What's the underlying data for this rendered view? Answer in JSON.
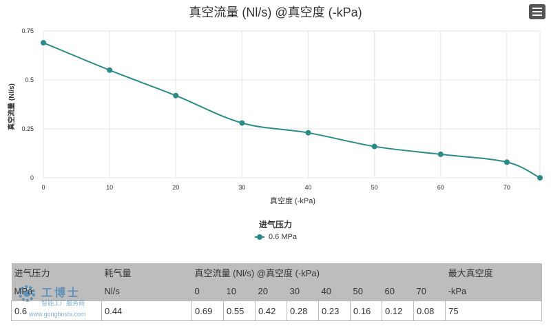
{
  "chart_data": {
    "type": "line",
    "title": "真空流量 (Nl/s) @真空度 (-kPa)",
    "xlabel": "真空度 (-kPa)",
    "ylabel": "真空流量 (Nl/s)",
    "x": [
      0,
      10,
      20,
      30,
      40,
      50,
      60,
      70,
      75
    ],
    "xticks": [
      0,
      10,
      20,
      30,
      40,
      50,
      60,
      70
    ],
    "yticks": [
      0,
      0.25,
      0.5,
      0.75
    ],
    "xlim": [
      0,
      75
    ],
    "ylim": [
      0,
      0.75
    ],
    "grid": true,
    "legend_title": "进气压力",
    "legend_position": "bottom-center",
    "series": [
      {
        "name": "0.6 MPa",
        "color": "#2a8c87",
        "values": [
          0.69,
          0.55,
          0.42,
          0.28,
          0.23,
          0.16,
          0.12,
          0.08,
          0
        ]
      }
    ]
  },
  "menu": {
    "icon": "hamburger-menu-icon"
  },
  "table": {
    "header_row1": [
      "进气压力",
      "耗气量",
      "真空流量 (Nl/s) @真空度 (-kPa)",
      "最大真空度"
    ],
    "header_row2": [
      "MPa",
      "Nl/s",
      "0",
      "10",
      "20",
      "30",
      "40",
      "50",
      "60",
      "70",
      "-kPa"
    ],
    "rows": [
      [
        "0.6",
        "0.44",
        "0.69",
        "0.55",
        "0.42",
        "0.28",
        "0.23",
        "0.16",
        "0.12",
        "0.08",
        "75"
      ]
    ]
  },
  "watermark": {
    "title": "工博士",
    "subtitle": "智能工厂服务商",
    "url": "www.gongboshi.com"
  }
}
